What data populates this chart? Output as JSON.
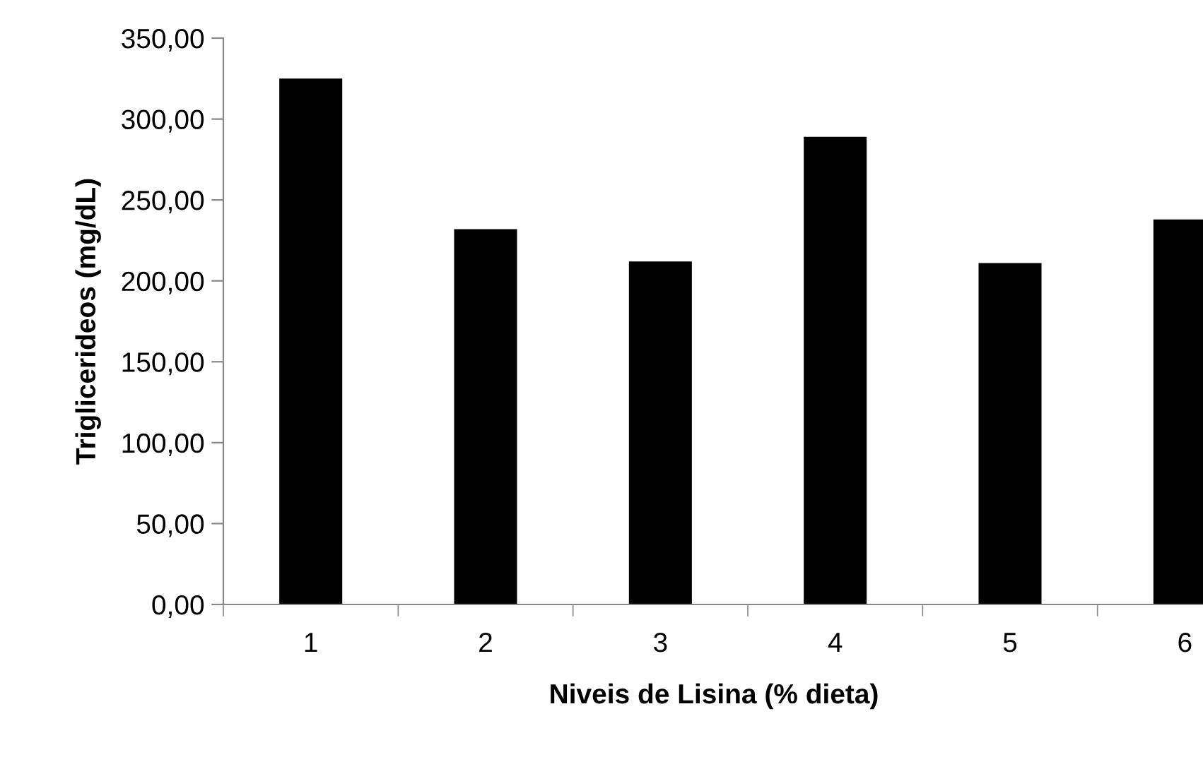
{
  "chart_data": {
    "type": "bar",
    "xlabel": "Niveis de Lisina (% dieta)",
    "ylabel": "Triglicerideos (mg/dL)",
    "categories": [
      "1",
      "2",
      "3",
      "4",
      "5",
      "6"
    ],
    "values": [
      325,
      232,
      212,
      289,
      211,
      238
    ],
    "color": "#000000",
    "ylim": [
      0,
      350
    ],
    "yticks": [
      {
        "value": 0,
        "label": "0,00"
      },
      {
        "value": 50,
        "label": "50,00"
      },
      {
        "value": 100,
        "label": "100,00"
      },
      {
        "value": 150,
        "label": "150,00"
      },
      {
        "value": 200,
        "label": "200,00"
      },
      {
        "value": 250,
        "label": "250,00"
      },
      {
        "value": 300,
        "label": "300,00"
      },
      {
        "value": 350,
        "label": "350,00"
      }
    ],
    "grid": false
  }
}
